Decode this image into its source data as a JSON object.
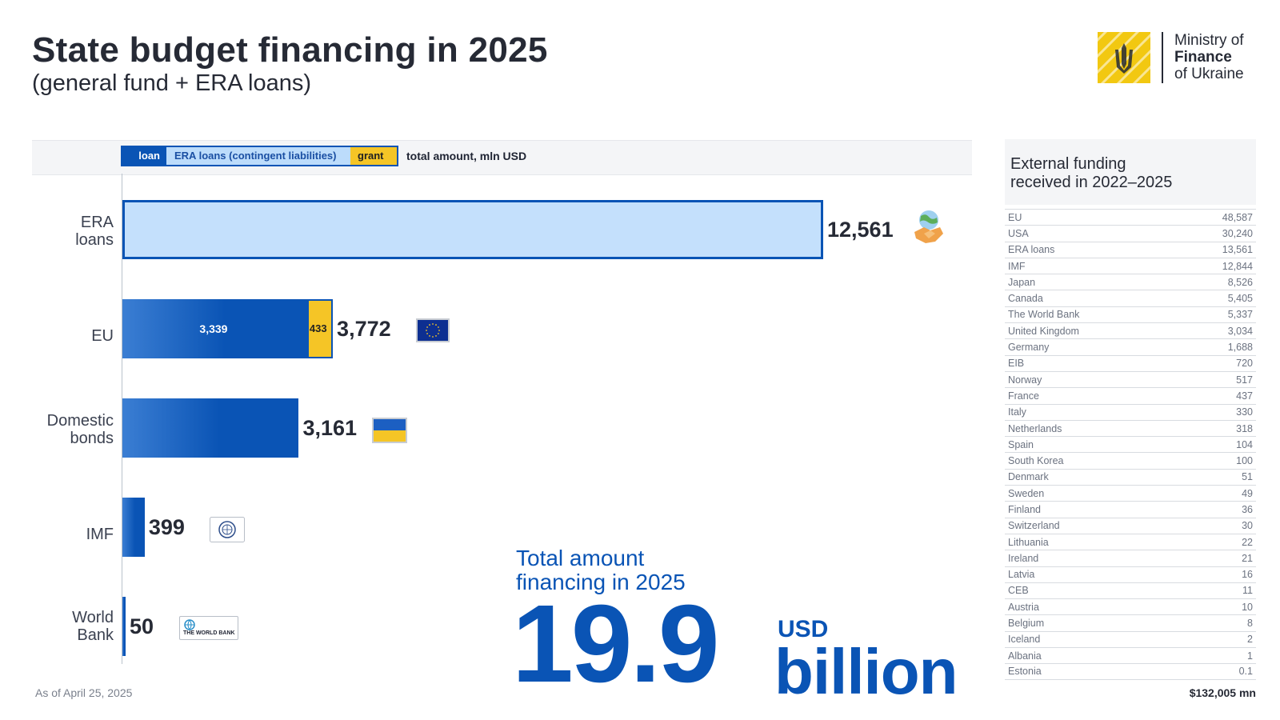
{
  "title": "State budget financing in 2025",
  "subtitle": "(general fund + ERA loans)",
  "logo": {
    "line1": "Ministry of",
    "line2": "Finance",
    "line3": "of Ukraine",
    "icon": "trident-emblem-icon"
  },
  "legend": {
    "loan": "loan",
    "era": "ERA loans (contingent liabilities)",
    "grant": "grant",
    "total": "total amount, mln USD"
  },
  "colors": {
    "loan": "#0a54b5",
    "era": "#c4e0fc",
    "grant": "#f5c526",
    "accent": "#0a54b5"
  },
  "chart_data": {
    "type": "bar",
    "orientation": "horizontal",
    "categories": [
      "ERA\nloans",
      "EU",
      "Domestic\nbonds",
      "IMF",
      "World\nBank"
    ],
    "series": [
      {
        "name": "loan",
        "values": [
          0,
          3339,
          3161,
          399,
          50
        ]
      },
      {
        "name": "ERA loans (contingent liabilities)",
        "values": [
          12561,
          0,
          0,
          0,
          0
        ]
      },
      {
        "name": "grant",
        "values": [
          0,
          433,
          0,
          0,
          0
        ]
      }
    ],
    "totals": [
      "12,561",
      "3,772",
      "3,161",
      "399",
      "50"
    ],
    "segment_labels": {
      "eu_loan": "3,339",
      "eu_grant": "433"
    },
    "icons": [
      "handshake-globe-icon",
      "eu-flag-icon",
      "ukraine-flag-icon",
      "imf-logo-icon",
      "world-bank-logo-icon"
    ],
    "xlim": [
      0,
      12561
    ],
    "grid": false,
    "legend_position": "top"
  },
  "as_of": "As of April 25, 2025",
  "total": {
    "label_line1": "Total amount",
    "label_line2": "financing in 2025",
    "number": "19.9",
    "currency": "USD",
    "unit": "billion"
  },
  "world_bank_caption": "THE WORLD BANK",
  "side_table": {
    "title_line1": "External funding",
    "title_line2": "received in 2022–2025",
    "rows": [
      {
        "name": "EU",
        "value": "48,587"
      },
      {
        "name": "USA",
        "value": "30,240"
      },
      {
        "name": "ERA loans",
        "value": "13,561"
      },
      {
        "name": "IMF",
        "value": "12,844"
      },
      {
        "name": "Japan",
        "value": "8,526"
      },
      {
        "name": "Canada",
        "value": "5,405"
      },
      {
        "name": "The World Bank",
        "value": "5,337"
      },
      {
        "name": "United Kingdom",
        "value": "3,034"
      },
      {
        "name": "Germany",
        "value": "1,688"
      },
      {
        "name": "EIB",
        "value": "720"
      },
      {
        "name": "Norway",
        "value": "517"
      },
      {
        "name": "France",
        "value": "437"
      },
      {
        "name": "Italy",
        "value": "330"
      },
      {
        "name": "Netherlands",
        "value": "318"
      },
      {
        "name": "Spain",
        "value": "104"
      },
      {
        "name": "South Korea",
        "value": "100"
      },
      {
        "name": "Denmark",
        "value": "51"
      },
      {
        "name": "Sweden",
        "value": "49"
      },
      {
        "name": "Finland",
        "value": "36"
      },
      {
        "name": "Switzerland",
        "value": "30"
      },
      {
        "name": "Lithuania",
        "value": "22"
      },
      {
        "name": "Ireland",
        "value": "21"
      },
      {
        "name": "Latvia",
        "value": "16"
      },
      {
        "name": "CEB",
        "value": "11"
      },
      {
        "name": "Austria",
        "value": "10"
      },
      {
        "name": "Belgium",
        "value": "8"
      },
      {
        "name": "Iceland",
        "value": "2"
      },
      {
        "name": "Albania",
        "value": "1"
      },
      {
        "name": "Estonia",
        "value": "0.1"
      }
    ],
    "total": "$132,005 mn"
  }
}
